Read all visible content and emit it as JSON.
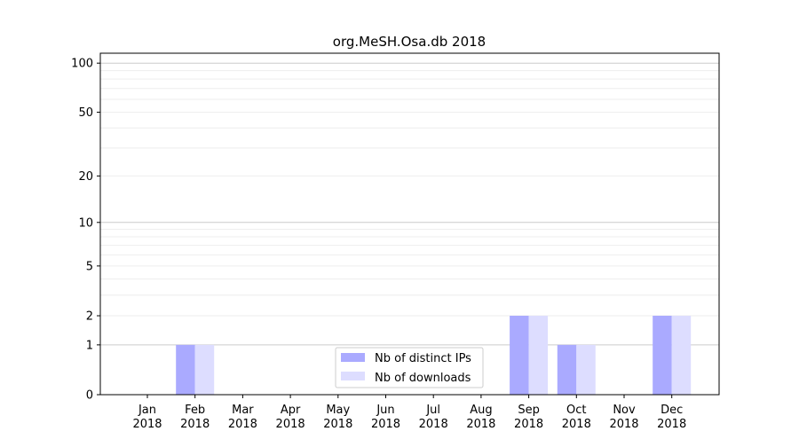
{
  "chart_data": {
    "type": "bar",
    "title": "org.MeSH.Osa.db 2018",
    "xlabel": "",
    "ylabel": "",
    "yscale": "log(1+y)",
    "ylim": [
      0,
      110
    ],
    "yticks": [
      0,
      1,
      2,
      5,
      10,
      20,
      50,
      100
    ],
    "ytick_labels": [
      "0",
      "1",
      "2",
      "5",
      "10",
      "20",
      "50",
      "100"
    ],
    "categories": [
      "Jan",
      "Feb",
      "Mar",
      "Apr",
      "May",
      "Jun",
      "Jul",
      "Aug",
      "Sep",
      "Oct",
      "Nov",
      "Dec"
    ],
    "category_year": "2018",
    "series": [
      {
        "name": "Nb of distinct IPs",
        "color": "#aaaaff",
        "values": [
          0,
          1,
          0,
          0,
          0,
          0,
          0,
          0,
          2,
          1,
          0,
          2
        ]
      },
      {
        "name": "Nb of downloads",
        "color": "#ddddff",
        "values": [
          0,
          1,
          0,
          0,
          0,
          0,
          0,
          0,
          2,
          1,
          0,
          2
        ]
      }
    ],
    "grid": true,
    "legend_position": "lower-center"
  }
}
